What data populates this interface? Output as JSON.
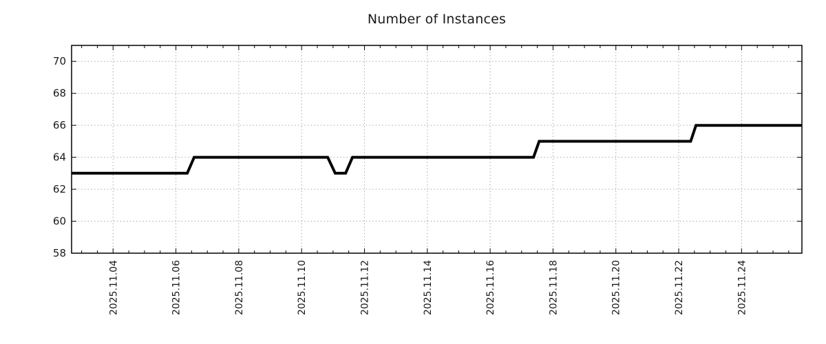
{
  "chart_data": {
    "type": "line",
    "title": "Number of Instances",
    "xlabel": "",
    "ylabel": "",
    "x_unit": "day of November 2025 (decimal)",
    "xlim": [
      2.68,
      25.92
    ],
    "ylim": [
      58,
      71
    ],
    "y_ticks": [
      58,
      60,
      62,
      64,
      66,
      68,
      70
    ],
    "y_tick_labels": [
      "58",
      "60",
      "62",
      "64",
      "66",
      "68",
      "70"
    ],
    "x_major_ticks": [
      4,
      6,
      8,
      10,
      12,
      14,
      16,
      18,
      20,
      22,
      24
    ],
    "x_tick_labels": [
      "2025.11.04",
      "2025.11.06",
      "2025.11.08",
      "2025.11.10",
      "2025.11.12",
      "2025.11.14",
      "2025.11.16",
      "2025.11.18",
      "2025.11.20",
      "2025.11.22",
      "2025.11.24"
    ],
    "x_minor_tick_step": 0.5,
    "grid": true,
    "legend": "none",
    "series": [
      {
        "name": "instances",
        "points": [
          [
            2.68,
            63
          ],
          [
            6.36,
            63
          ],
          [
            6.58,
            64
          ],
          [
            10.83,
            64
          ],
          [
            11.07,
            63
          ],
          [
            11.4,
            63
          ],
          [
            11.62,
            64
          ],
          [
            17.38,
            64
          ],
          [
            17.56,
            65
          ],
          [
            22.38,
            65
          ],
          [
            22.55,
            66
          ],
          [
            25.92,
            66
          ]
        ]
      }
    ],
    "colors": {
      "line": "#000000",
      "grid": "#a6a6a6",
      "axis": "#000000",
      "text": "#1a1a1a",
      "background": "#ffffff"
    },
    "line_width": 4
  }
}
